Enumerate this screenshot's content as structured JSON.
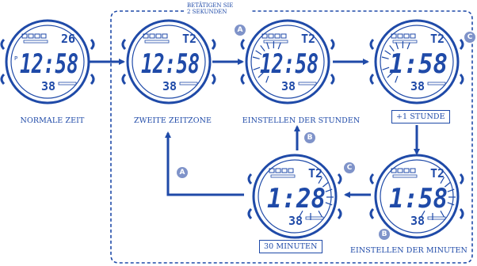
{
  "note": {
    "line1": "BETÄTIGEN SIE",
    "line2": "2 SEKUNDEN"
  },
  "labels": {
    "normal": "NORMALE ZEIT",
    "zone2": "ZWEITE ZEITZONE",
    "set_hours": "EINSTELLEN DER STUNDEN",
    "plus1": "+1 STUNDE",
    "set_minutes": "EINSTELLEN DER MINUTEN",
    "thirty": "30 MINUTEN"
  },
  "buttons": {
    "a": "A",
    "b": "B",
    "c": "C"
  },
  "watches": [
    {
      "id": "normal",
      "top": "26",
      "time": "12:58",
      "bottom": "38",
      "prefix": "P"
    },
    {
      "id": "zone2",
      "top": "T2",
      "time": "12:58",
      "bottom": "38",
      "prefix": ""
    },
    {
      "id": "set-hours",
      "top": "T2",
      "time": "12:58",
      "bottom": "38",
      "prefix": ""
    },
    {
      "id": "plus1",
      "top": "T2",
      "time": "1:58",
      "bottom": "38",
      "prefix": ""
    },
    {
      "id": "set-minutes",
      "top": "T2",
      "time": "1:58",
      "bottom": "38",
      "prefix": ""
    },
    {
      "id": "thirty",
      "top": "T2",
      "time": "1:28",
      "bottom": "38",
      "prefix": ""
    }
  ],
  "colors": {
    "primary": "#1f4aa8",
    "badge": "#7f93c9"
  }
}
